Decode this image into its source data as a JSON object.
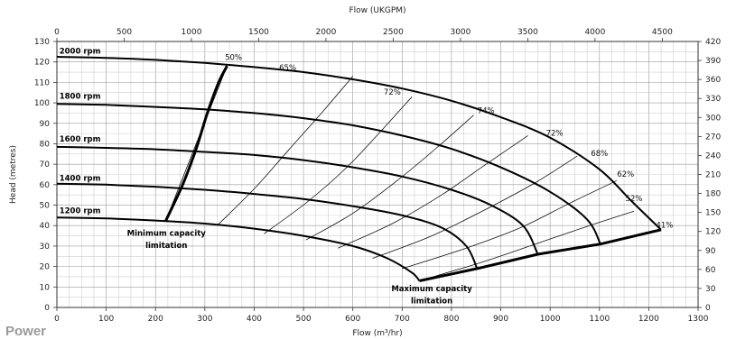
{
  "chart_data": {
    "type": "line",
    "top_axis": {
      "label": "Flow (UKGPM)",
      "ticks": [
        0,
        500,
        1000,
        1500,
        2000,
        2500,
        3000,
        3500,
        4000,
        4500
      ]
    },
    "x_axis": {
      "label": "Flow (m³/hr)",
      "range": [
        0,
        1300
      ],
      "major_step": 100,
      "minor_step": 25
    },
    "y_axis": {
      "label": "Head (metres)",
      "range": [
        0,
        130
      ],
      "major_step": 10,
      "minor_step": 5
    },
    "right_axis": {
      "label": "",
      "range": [
        0,
        420
      ],
      "ticks": [
        0,
        30,
        60,
        90,
        120,
        150,
        180,
        210,
        240,
        270,
        300,
        330,
        360,
        390,
        420
      ]
    },
    "grid": true,
    "series": [
      {
        "name": "2000 rpm",
        "points": [
          [
            0,
            122.5
          ],
          [
            100,
            122
          ],
          [
            200,
            121
          ],
          [
            300,
            119.5
          ],
          [
            400,
            117.5
          ],
          [
            500,
            115
          ],
          [
            600,
            111.5
          ],
          [
            700,
            107
          ],
          [
            800,
            101
          ],
          [
            900,
            93
          ],
          [
            1000,
            83
          ],
          [
            1100,
            67.5
          ],
          [
            1165,
            52
          ],
          [
            1225,
            38
          ]
        ]
      },
      {
        "name": "1800 rpm",
        "points": [
          [
            0,
            99.5
          ],
          [
            100,
            99
          ],
          [
            200,
            98
          ],
          [
            300,
            96.8
          ],
          [
            400,
            95
          ],
          [
            500,
            92.5
          ],
          [
            600,
            89
          ],
          [
            700,
            84
          ],
          [
            800,
            77.5
          ],
          [
            900,
            68.5
          ],
          [
            1000,
            56.5
          ],
          [
            1075,
            43
          ],
          [
            1102,
            31
          ]
        ]
      },
      {
        "name": "1600 rpm",
        "points": [
          [
            0,
            78.5
          ],
          [
            100,
            78
          ],
          [
            200,
            77.3
          ],
          [
            300,
            76
          ],
          [
            400,
            74.5
          ],
          [
            500,
            72
          ],
          [
            600,
            68.5
          ],
          [
            700,
            64
          ],
          [
            800,
            57.5
          ],
          [
            880,
            50
          ],
          [
            945,
            40
          ],
          [
            975,
            26
          ]
        ]
      },
      {
        "name": "1400 rpm",
        "points": [
          [
            0,
            60.5
          ],
          [
            100,
            60
          ],
          [
            200,
            59
          ],
          [
            300,
            57.5
          ],
          [
            400,
            55.5
          ],
          [
            500,
            53
          ],
          [
            600,
            49.5
          ],
          [
            700,
            45
          ],
          [
            780,
            39
          ],
          [
            830,
            30
          ],
          [
            852,
            19
          ]
        ]
      },
      {
        "name": "1200 rpm",
        "points": [
          [
            0,
            44
          ],
          [
            100,
            43.5
          ],
          [
            200,
            42.5
          ],
          [
            300,
            41
          ],
          [
            400,
            38.5
          ],
          [
            500,
            35
          ],
          [
            600,
            30
          ],
          [
            670,
            24
          ],
          [
            720,
            17
          ],
          [
            735,
            13
          ]
        ]
      }
    ],
    "limit_lines": [
      {
        "name": "Minimum capacity limitation",
        "points": [
          [
            220,
            42
          ],
          [
            255,
            60
          ],
          [
            283,
            78
          ],
          [
            305,
            95
          ],
          [
            328,
            110
          ],
          [
            345,
            118
          ]
        ]
      },
      {
        "name": "Maximum capacity limitation",
        "points": [
          [
            735,
            13
          ],
          [
            852,
            19
          ],
          [
            975,
            26
          ],
          [
            1102,
            31
          ],
          [
            1225,
            38
          ]
        ]
      }
    ],
    "efficiency_lines": [
      {
        "label": "50%",
        "points": [
          [
            220,
            42
          ],
          [
            345,
            118
          ]
        ]
      },
      {
        "label": "65%",
        "points": [
          [
            325,
            40
          ],
          [
            400,
            58
          ],
          [
            470,
            77
          ],
          [
            540,
            96
          ],
          [
            600,
            113
          ]
        ]
      },
      {
        "label": "72%",
        "points": [
          [
            420,
            36
          ],
          [
            510,
            52
          ],
          [
            590,
            69
          ],
          [
            660,
            87
          ],
          [
            720,
            103
          ]
        ]
      },
      {
        "label": "74%",
        "points": [
          [
            505,
            33
          ],
          [
            600,
            46
          ],
          [
            690,
            62
          ],
          [
            770,
            78
          ],
          [
            845,
            94
          ]
        ]
      },
      {
        "label": "72%",
        "points": [
          [
            570,
            29
          ],
          [
            680,
            41
          ],
          [
            780,
            55
          ],
          [
            870,
            70
          ],
          [
            955,
            84
          ]
        ]
      },
      {
        "label": "68%",
        "points": [
          [
            640,
            24
          ],
          [
            760,
            35
          ],
          [
            870,
            48
          ],
          [
            970,
            61
          ],
          [
            1055,
            74
          ]
        ]
      },
      {
        "label": "62%",
        "points": [
          [
            700,
            19
          ],
          [
            830,
            29
          ],
          [
            940,
            39
          ],
          [
            1040,
            51
          ],
          [
            1135,
            62
          ]
        ]
      },
      {
        "label": "52%",
        "points": [
          [
            735,
            13
          ],
          [
            860,
            22
          ],
          [
            970,
            31
          ],
          [
            1080,
            40
          ],
          [
            1170,
            47
          ]
        ]
      },
      {
        "label": "41%",
        "points": [
          [
            1225,
            38
          ]
        ]
      }
    ],
    "efficiency_label_positions": [
      [
        358,
        121
      ],
      [
        468,
        116
      ],
      [
        680,
        104
      ],
      [
        870,
        95
      ],
      [
        1009,
        84
      ],
      [
        1100,
        74
      ],
      [
        1153,
        64
      ],
      [
        1170,
        52
      ],
      [
        1232,
        39
      ]
    ],
    "speed_labels": [
      {
        "text": "2000 rpm",
        "at": [
          5,
          124
        ]
      },
      {
        "text": "1800 rpm",
        "at": [
          5,
          102
        ]
      },
      {
        "text": "1600 rpm",
        "at": [
          5,
          81
        ]
      },
      {
        "text": "1400 rpm",
        "at": [
          5,
          62
        ]
      },
      {
        "text": "1200 rpm",
        "at": [
          5,
          46
        ]
      }
    ],
    "annotations": [
      {
        "text": "Minimum capacity",
        "at": [
          222,
          35
        ]
      },
      {
        "text": "limitation",
        "at": [
          222,
          29
        ]
      },
      {
        "text": "Maximum capacity",
        "at": [
          760,
          8
        ]
      },
      {
        "text": "limitation",
        "at": [
          760,
          2
        ]
      }
    ]
  },
  "footer": {
    "section_label": "Power"
  }
}
